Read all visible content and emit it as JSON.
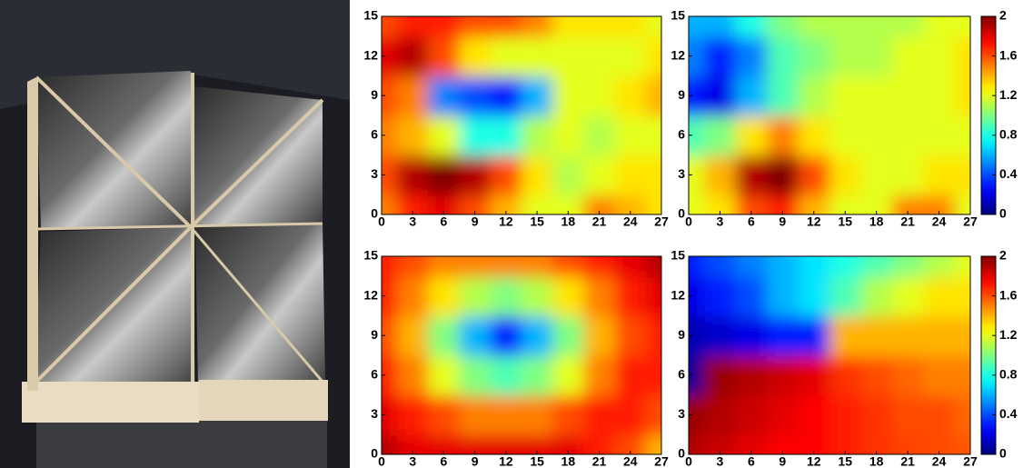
{
  "chart_data": [
    {
      "type": "heatmap",
      "x": [
        0,
        3,
        6,
        9,
        12,
        15,
        18,
        21,
        24,
        27
      ],
      "y": [
        0,
        3,
        6,
        9,
        12,
        15
      ],
      "z": [
        [
          1.5,
          1.7,
          1.8,
          1.6,
          1.4,
          1.2,
          1.2,
          1.5,
          1.4,
          1.3
        ],
        [
          1.6,
          1.9,
          2.0,
          1.9,
          1.6,
          1.3,
          1.1,
          1.2,
          1.3,
          1.3
        ],
        [
          1.5,
          1.4,
          1.2,
          0.8,
          0.8,
          1.1,
          1.2,
          1.1,
          1.2,
          1.2
        ],
        [
          1.6,
          1.5,
          0.5,
          0.4,
          0.3,
          0.6,
          1.2,
          1.2,
          1.3,
          1.4
        ],
        [
          1.8,
          1.9,
          1.6,
          1.3,
          1.2,
          1.2,
          1.2,
          1.2,
          1.2,
          1.3
        ],
        [
          1.6,
          1.7,
          1.7,
          1.6,
          1.6,
          1.5,
          1.3,
          1.3,
          1.3,
          1.2
        ]
      ],
      "xlim": [
        0,
        27
      ],
      "ylim": [
        0,
        15
      ],
      "xticks": [
        0,
        3,
        6,
        9,
        12,
        15,
        18,
        21,
        24,
        27
      ],
      "yticks": [
        0,
        3,
        6,
        9,
        12,
        15
      ],
      "zlim": [
        0,
        2
      ],
      "colorbar": false
    },
    {
      "type": "heatmap",
      "x": [
        0,
        3,
        6,
        9,
        12,
        15,
        18,
        21,
        24,
        27
      ],
      "y": [
        0,
        3,
        6,
        9,
        12,
        15
      ],
      "z": [
        [
          1.2,
          1.3,
          1.6,
          1.7,
          1.4,
          1.2,
          1.2,
          1.5,
          1.5,
          1.2
        ],
        [
          1.2,
          1.4,
          1.9,
          2.0,
          1.6,
          1.3,
          1.2,
          1.2,
          1.3,
          1.3
        ],
        [
          0.9,
          1.0,
          1.3,
          1.5,
          1.3,
          1.2,
          1.2,
          1.2,
          1.2,
          1.2
        ],
        [
          0.3,
          0.2,
          0.6,
          0.9,
          1.1,
          1.2,
          1.2,
          1.2,
          1.2,
          1.3
        ],
        [
          0.5,
          0.3,
          0.5,
          0.9,
          1.0,
          1.1,
          1.1,
          1.2,
          1.2,
          1.3
        ],
        [
          0.6,
          0.6,
          0.8,
          1.0,
          1.1,
          1.1,
          1.1,
          1.1,
          1.2,
          1.2
        ]
      ],
      "xlim": [
        0,
        27
      ],
      "ylim": [
        0,
        15
      ],
      "xticks": [
        0,
        3,
        6,
        9,
        12,
        15,
        18,
        21,
        24,
        27
      ],
      "yticks": [
        0,
        3,
        6,
        9,
        12,
        15
      ],
      "zlim": [
        0,
        2
      ],
      "zticks": [
        0,
        0.4,
        0.8,
        1.2,
        1.6,
        2
      ],
      "colorbar": true
    },
    {
      "type": "heatmap",
      "x": [
        0,
        3,
        6,
        9,
        12,
        15,
        18,
        21,
        24,
        27
      ],
      "y": [
        0,
        3,
        6,
        9,
        12,
        15
      ],
      "z": [
        [
          1.9,
          1.8,
          1.8,
          1.8,
          1.8,
          1.8,
          1.8,
          1.7,
          1.6,
          1.4
        ],
        [
          1.8,
          1.7,
          1.6,
          1.5,
          1.5,
          1.5,
          1.6,
          1.7,
          1.7,
          1.6
        ],
        [
          1.7,
          1.5,
          1.2,
          1.0,
          0.9,
          1.0,
          1.2,
          1.5,
          1.7,
          1.7
        ],
        [
          1.6,
          1.4,
          1.0,
          0.6,
          0.3,
          0.6,
          1.0,
          1.4,
          1.6,
          1.7
        ],
        [
          1.7,
          1.5,
          1.3,
          1.1,
          1.0,
          1.1,
          1.3,
          1.5,
          1.7,
          1.8
        ],
        [
          1.7,
          1.6,
          1.5,
          1.5,
          1.5,
          1.5,
          1.6,
          1.7,
          1.8,
          1.9
        ]
      ],
      "xlim": [
        0,
        27
      ],
      "ylim": [
        0,
        15
      ],
      "xticks": [
        0,
        3,
        6,
        9,
        12,
        15,
        18,
        21,
        24,
        27
      ],
      "yticks": [
        0,
        3,
        6,
        9,
        12,
        15
      ],
      "zlim": [
        0,
        2
      ],
      "colorbar": false
    },
    {
      "type": "heatmap",
      "x": [
        0,
        3,
        6,
        9,
        12,
        15,
        18,
        21,
        24,
        27
      ],
      "y": [
        0,
        3,
        6,
        9,
        12,
        15
      ],
      "z": [
        [
          1.9,
          1.85,
          1.8,
          1.75,
          1.75,
          1.7,
          1.65,
          1.62,
          1.6,
          1.58
        ],
        [
          1.95,
          1.9,
          1.85,
          1.8,
          1.75,
          1.7,
          1.65,
          1.6,
          1.6,
          1.55
        ],
        [
          0.05,
          1.95,
          1.9,
          1.85,
          1.8,
          1.65,
          1.6,
          1.55,
          1.5,
          1.5
        ],
        [
          0.1,
          0.15,
          0.2,
          0.3,
          0.3,
          1.4,
          1.4,
          1.4,
          1.4,
          1.4
        ],
        [
          0.2,
          0.3,
          0.4,
          0.6,
          0.7,
          0.9,
          1.1,
          1.2,
          1.3,
          1.3
        ],
        [
          0.3,
          0.4,
          0.5,
          0.6,
          0.7,
          0.8,
          0.9,
          1.0,
          1.1,
          1.2
        ]
      ],
      "xlim": [
        0,
        27
      ],
      "ylim": [
        0,
        15
      ],
      "xticks": [
        0,
        3,
        6,
        9,
        12,
        15,
        18,
        21,
        24,
        27
      ],
      "yticks": [
        0,
        3,
        6,
        9,
        12,
        15
      ],
      "zlim": [
        0,
        2
      ],
      "zticks": [
        0,
        0.4,
        0.8,
        1.2,
        1.6,
        2
      ],
      "colorbar": true
    }
  ]
}
